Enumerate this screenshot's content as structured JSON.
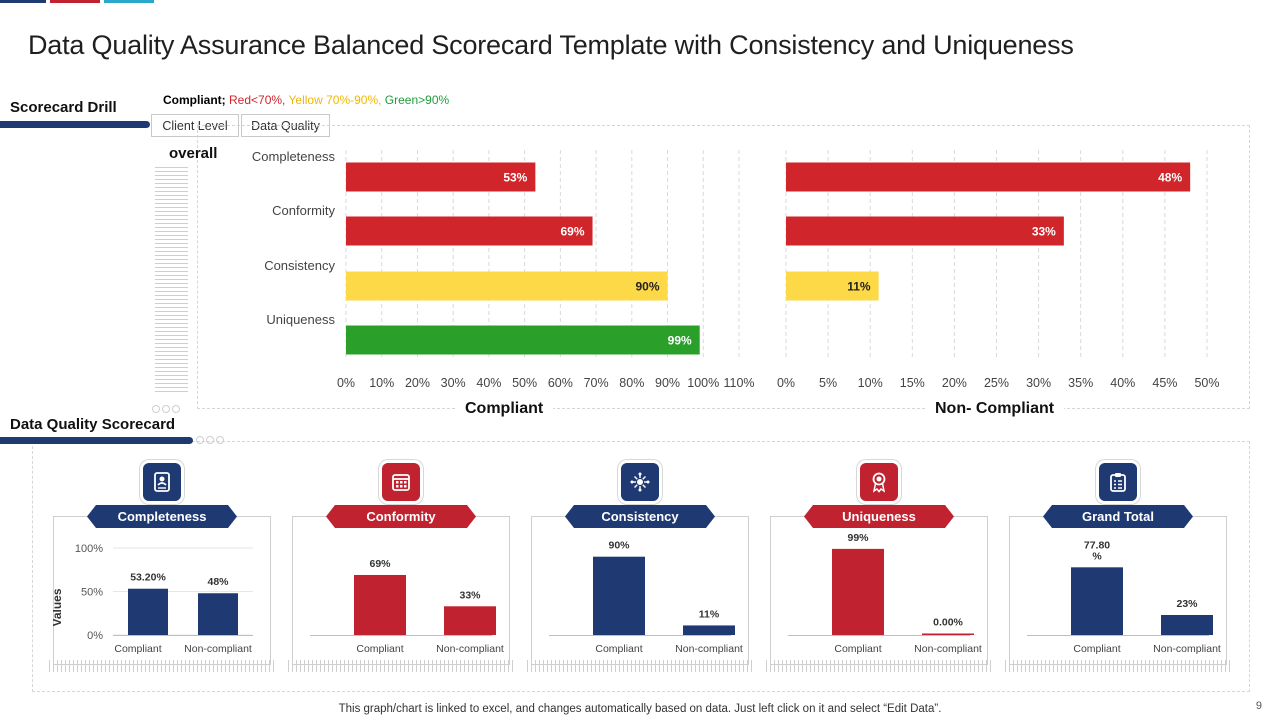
{
  "slide": {
    "title": "Data Quality Assurance Balanced Scorecard Template with Consistency and Uniqueness",
    "accent_colors": [
      "#1f3a73",
      "#c0222f",
      "#2aa7c9"
    ],
    "footnote": "This graph/chart is linked to excel, and changes automatically based on data. Just left click on it and select “Edit Data”.",
    "page_number": "9"
  },
  "scorecard_drill": {
    "label": "Scorecard Drill",
    "legend": {
      "prefix": "Compliant;",
      "red": " Red<70%,",
      "yellow": " Yellow 70%-90%,",
      "green": " Green>90%"
    },
    "filters": [
      "Client Level",
      "Data Quality"
    ],
    "overall_label": "overall"
  },
  "data_quality_scorecard": {
    "label": "Data Quality Scorecard",
    "cards": [
      {
        "title": "Completeness",
        "icon": "id-card-icon",
        "theme": "#1f3a73"
      },
      {
        "title": "Conformity",
        "icon": "calendar-icon",
        "theme": "#c0222f"
      },
      {
        "title": "Consistency",
        "icon": "network-icon",
        "theme": "#1f3a73"
      },
      {
        "title": "Uniqueness",
        "icon": "award-ribbon-icon",
        "theme": "#c0222f"
      },
      {
        "title": "Grand Total",
        "icon": "clipboard-icon",
        "theme": "#1f3a73"
      }
    ]
  },
  "colors": {
    "red": "#d0252a",
    "yellow": "#fdd947",
    "green": "#2aa02a",
    "navy": "#1f3a73",
    "crimson": "#c0222f"
  },
  "chart_data": [
    {
      "type": "bar",
      "orientation": "horizontal",
      "title": "Compliant",
      "categories": [
        "Completeness",
        "Conformity",
        "Consistency",
        "Uniqueness"
      ],
      "values": [
        53,
        69,
        90,
        99
      ],
      "labels": [
        "53%",
        "69%",
        "90%",
        "99%"
      ],
      "bar_colors": [
        "#d0252a",
        "#d0252a",
        "#fdd947",
        "#2aa02a"
      ],
      "label_colors": [
        "#ffffff",
        "#ffffff",
        "#222222",
        "#ffffff"
      ],
      "xlim": [
        0,
        110
      ],
      "xticks": [
        "0%",
        "10%",
        "20%",
        "30%",
        "40%",
        "50%",
        "60%",
        "70%",
        "80%",
        "90%",
        "100%",
        "110%"
      ],
      "grid": true
    },
    {
      "type": "bar",
      "orientation": "horizontal",
      "title": "Non- Compliant",
      "categories": [
        "Completeness",
        "Conformity",
        "Consistency",
        "Uniqueness"
      ],
      "values": [
        48,
        33,
        11,
        0
      ],
      "labels": [
        "48%",
        "33%",
        "11%",
        ""
      ],
      "bar_colors": [
        "#d0252a",
        "#d0252a",
        "#fdd947",
        "#2aa02a"
      ],
      "label_colors": [
        "#ffffff",
        "#ffffff",
        "#222222",
        "#ffffff"
      ],
      "xlim": [
        0,
        50
      ],
      "xticks": [
        "0%",
        "5%",
        "10%",
        "15%",
        "20%",
        "25%",
        "30%",
        "35%",
        "40%",
        "45%",
        "50%"
      ],
      "grid": true
    },
    {
      "type": "bar",
      "title": "Completeness",
      "ylabel": "Values",
      "categories": [
        "Compliant",
        "Non-compliant"
      ],
      "values": [
        53.2,
        48
      ],
      "labels": [
        "53.20%",
        "48%"
      ],
      "ylim": [
        0,
        100
      ],
      "yticks": [
        "0%",
        "50%",
        "100%"
      ],
      "color": "#1f3a73"
    },
    {
      "type": "bar",
      "title": "Conformity",
      "categories": [
        "Compliant",
        "Non-compliant"
      ],
      "values": [
        69,
        33
      ],
      "labels": [
        "69%",
        "33%"
      ],
      "ylim": [
        0,
        100
      ],
      "color": "#c0222f"
    },
    {
      "type": "bar",
      "title": "Consistency",
      "categories": [
        "Compliant",
        "Non-compliant"
      ],
      "values": [
        90,
        11
      ],
      "labels": [
        "90%",
        "11%"
      ],
      "ylim": [
        0,
        100
      ],
      "color": "#1f3a73"
    },
    {
      "type": "bar",
      "title": "Uniqueness",
      "categories": [
        "Compliant",
        "Non-compliant"
      ],
      "values": [
        99,
        0
      ],
      "labels": [
        "99%",
        "0.00%"
      ],
      "ylim": [
        0,
        100
      ],
      "color": "#c0222f"
    },
    {
      "type": "bar",
      "title": "Grand Total",
      "categories": [
        "Compliant",
        "Non-compliant"
      ],
      "values": [
        77.8,
        23
      ],
      "labels": [
        "77.80\n%",
        "23%"
      ],
      "ylim": [
        0,
        100
      ],
      "color": "#1f3a73"
    }
  ]
}
